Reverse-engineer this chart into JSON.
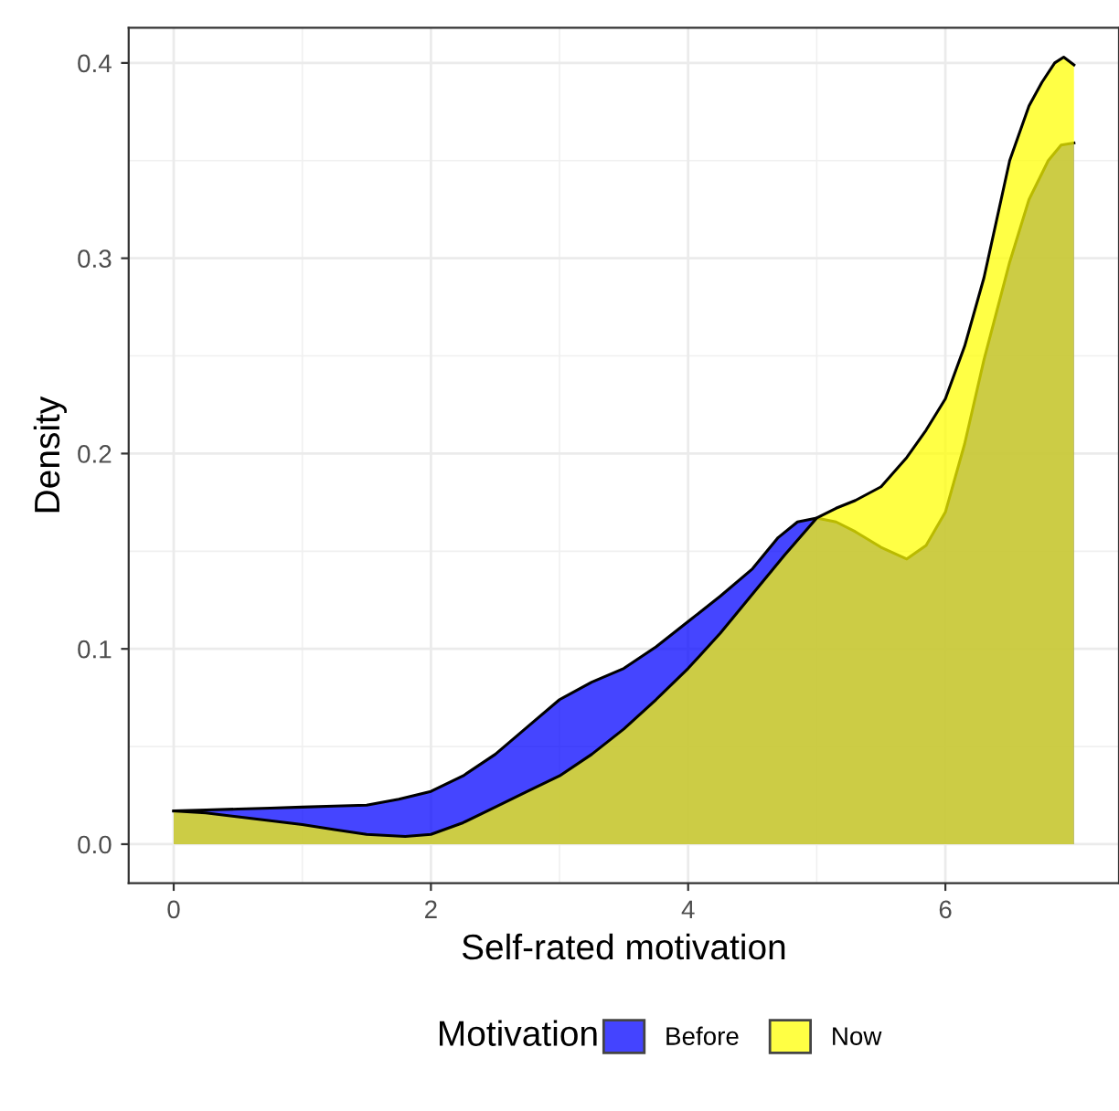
{
  "chart_data": {
    "type": "area",
    "xlabel": "Self-rated motivation",
    "ylabel": "Density",
    "legend_title": "Motivation",
    "series": [
      {
        "name": "Before",
        "color": "#0000ff",
        "x": [
          0,
          0.25,
          0.5,
          0.75,
          1,
          1.25,
          1.5,
          1.75,
          2,
          2.25,
          2.5,
          2.75,
          3,
          3.25,
          3.5,
          3.75,
          4,
          4.25,
          4.5,
          4.7,
          4.85,
          5,
          5.15,
          5.3,
          5.5,
          5.7,
          5.85,
          6,
          6.15,
          6.3,
          6.5,
          6.65,
          6.8,
          6.9,
          7
        ],
        "values": [
          0.017,
          0.0175,
          0.018,
          0.0185,
          0.019,
          0.0195,
          0.02,
          0.023,
          0.027,
          0.035,
          0.046,
          0.06,
          0.074,
          0.083,
          0.09,
          0.101,
          0.114,
          0.127,
          0.141,
          0.157,
          0.165,
          0.167,
          0.165,
          0.16,
          0.152,
          0.146,
          0.153,
          0.17,
          0.205,
          0.248,
          0.298,
          0.33,
          0.35,
          0.358,
          0.359
        ]
      },
      {
        "name": "Now",
        "color": "#ffff00",
        "x": [
          0,
          0.25,
          0.5,
          0.75,
          1,
          1.25,
          1.5,
          1.8,
          2,
          2.25,
          2.5,
          2.75,
          3,
          3.25,
          3.5,
          3.75,
          4,
          4.25,
          4.5,
          4.75,
          5,
          5.15,
          5.3,
          5.5,
          5.7,
          5.85,
          6,
          6.15,
          6.3,
          6.5,
          6.65,
          6.75,
          6.85,
          6.92,
          7
        ],
        "values": [
          0.017,
          0.016,
          0.014,
          0.012,
          0.01,
          0.0075,
          0.005,
          0.004,
          0.005,
          0.011,
          0.019,
          0.027,
          0.035,
          0.046,
          0.059,
          0.074,
          0.09,
          0.108,
          0.128,
          0.148,
          0.167,
          0.172,
          0.176,
          0.183,
          0.198,
          0.212,
          0.228,
          0.255,
          0.29,
          0.35,
          0.378,
          0.39,
          0.4,
          0.403,
          0.399
        ]
      }
    ],
    "xlim": [
      -0.35,
      7.35
    ],
    "xticks": [
      0,
      2,
      4,
      6
    ],
    "ylim": [
      -0.02,
      0.418
    ],
    "yticks": [
      {
        "value": 0,
        "label": "0.0"
      },
      0.1,
      0.2,
      0.3,
      0.4
    ],
    "grid": true,
    "legend": "bottom"
  }
}
